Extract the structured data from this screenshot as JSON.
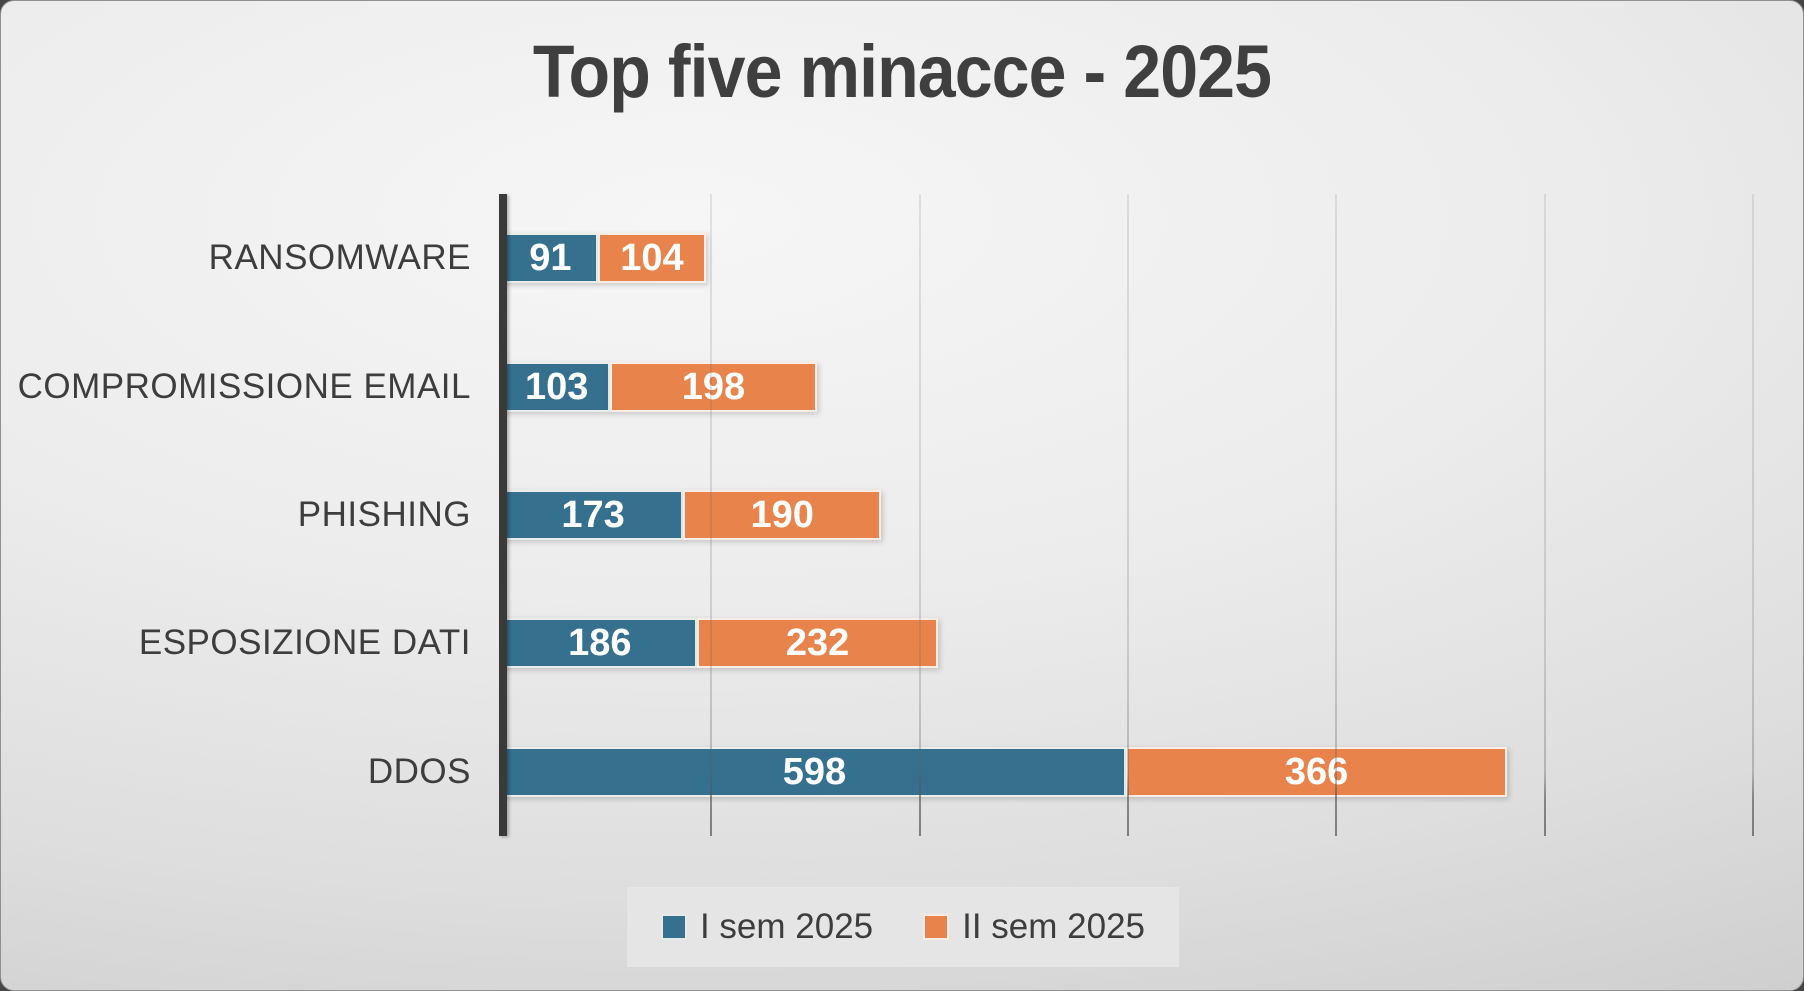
{
  "title": "Top five minacce - 2025",
  "legend": {
    "items": [
      {
        "label": "I sem 2025",
        "color": "#35708E"
      },
      {
        "label": "II sem 2025",
        "color": "#E8834C"
      }
    ]
  },
  "colors": {
    "series_1": "#35708E",
    "series_2": "#E8834C",
    "axis": "#3A3A3A",
    "text": "#3F3F3F",
    "data_label": "#FFFFFF",
    "legend_background": "#E5E5E5"
  },
  "chart_data": {
    "type": "bar",
    "orientation": "horizontal",
    "stacked": true,
    "title": "Top five minacce - 2025",
    "categories": [
      "RANSOMWARE",
      "COMPROMISSIONE EMAIL",
      "PHISHING",
      "ESPOSIZIONE DATI",
      "DDOS"
    ],
    "series": [
      {
        "name": "I sem 2025",
        "color": "#35708E",
        "values": [
          91,
          103,
          173,
          186,
          598
        ]
      },
      {
        "name": "II sem 2025",
        "color": "#E8834C",
        "values": [
          104,
          198,
          190,
          232,
          366
        ]
      }
    ],
    "totals": [
      195,
      301,
      363,
      418,
      964
    ],
    "x_axis": {
      "min": 0,
      "max": 1250,
      "gridline_interval": 200,
      "gridlines": [
        200,
        400,
        600,
        800,
        1000,
        1200
      ],
      "tick_labels_visible": false,
      "grid": true
    },
    "y_axis": {
      "tick_labels_visible": true
    },
    "data_labels": {
      "visible": true,
      "position": "inside-center"
    },
    "legend_position": "bottom-center"
  }
}
